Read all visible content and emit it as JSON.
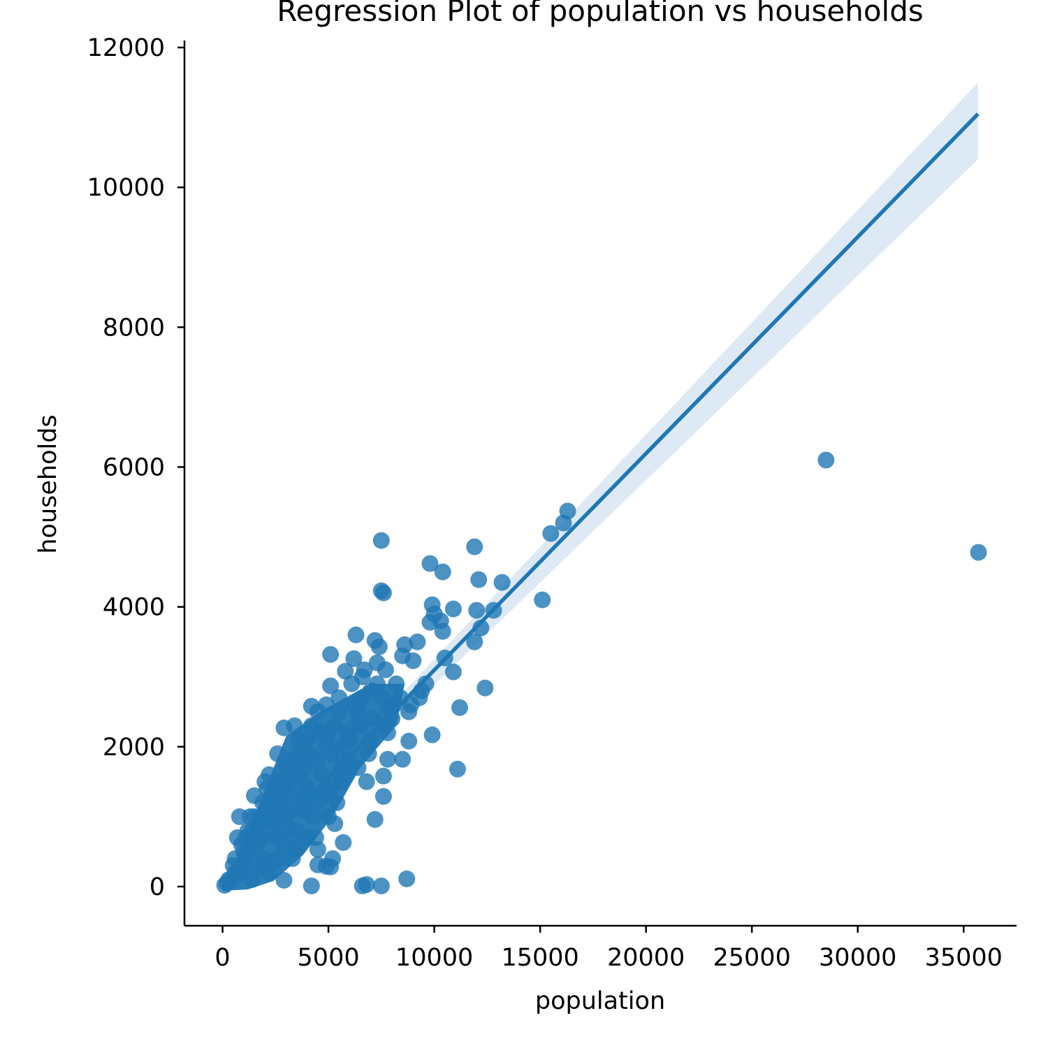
{
  "chart_data": {
    "type": "scatter",
    "title": "Regression Plot of population vs households",
    "xlabel": "population",
    "ylabel": "households",
    "xlim": [
      -1800,
      37500
    ],
    "ylim": [
      -560,
      12100
    ],
    "xticks": [
      0,
      5000,
      10000,
      15000,
      20000,
      25000,
      30000,
      35000
    ],
    "xtick_labels": [
      "0",
      "5000",
      "10000",
      "15000",
      "20000",
      "25000",
      "30000",
      "35000"
    ],
    "yticks": [
      0,
      2000,
      4000,
      6000,
      8000,
      10000,
      12000
    ],
    "ytick_labels": [
      "0",
      "2000",
      "4000",
      "6000",
      "8000",
      "10000",
      "12000"
    ],
    "grid": false,
    "colors": {
      "points": "#1f77b4",
      "line": "#1f77b4",
      "ci_band": "#c6dbef"
    },
    "regression": {
      "x": [
        0,
        35680
      ],
      "y": [
        0,
        11050
      ],
      "ci_lower_end": 10400,
      "ci_upper_end": 11500
    },
    "series": [
      {
        "points": [
          [
            7500,
            4950
          ],
          [
            7500,
            4230
          ],
          [
            7600,
            4200
          ],
          [
            9800,
            4620
          ],
          [
            10400,
            4500
          ],
          [
            11900,
            4860
          ],
          [
            12100,
            4390
          ],
          [
            13200,
            4350
          ],
          [
            9900,
            4030
          ],
          [
            9800,
            3780
          ],
          [
            10000,
            3900
          ],
          [
            10300,
            3800
          ],
          [
            10400,
            3650
          ],
          [
            10900,
            3970
          ],
          [
            12000,
            3950
          ],
          [
            12800,
            3950
          ],
          [
            12200,
            3700
          ],
          [
            11900,
            3500
          ],
          [
            15100,
            4100
          ],
          [
            15500,
            5050
          ],
          [
            16100,
            5200
          ],
          [
            16300,
            5370
          ],
          [
            28500,
            6100
          ],
          [
            35700,
            4780
          ],
          [
            6300,
            3600
          ],
          [
            7200,
            3520
          ],
          [
            7400,
            3430
          ],
          [
            8600,
            3460
          ],
          [
            9200,
            3500
          ],
          [
            5100,
            3320
          ],
          [
            6200,
            3260
          ],
          [
            7300,
            3200
          ],
          [
            8500,
            3300
          ],
          [
            9000,
            3230
          ],
          [
            10500,
            3270
          ],
          [
            10900,
            3070
          ],
          [
            12400,
            2840
          ],
          [
            11200,
            2560
          ],
          [
            11100,
            1680
          ],
          [
            9900,
            2170
          ],
          [
            8800,
            2080
          ],
          [
            8500,
            1820
          ],
          [
            7800,
            1820
          ],
          [
            7600,
            1580
          ],
          [
            7600,
            1290
          ],
          [
            7200,
            960
          ],
          [
            8700,
            110
          ],
          [
            7500,
            10
          ],
          [
            6600,
            10
          ],
          [
            6800,
            30
          ],
          [
            4200,
            10
          ],
          [
            5700,
            630
          ],
          [
            5200,
            400
          ],
          [
            4500,
            310
          ],
          [
            4900,
            290
          ],
          [
            5100,
            280
          ],
          [
            4500,
            530
          ],
          [
            3500,
            560
          ],
          [
            2900,
            90
          ],
          [
            5100,
            2870
          ],
          [
            4200,
            2580
          ],
          [
            4500,
            2500
          ],
          [
            5800,
            3080
          ],
          [
            3400,
            2300
          ],
          [
            2900,
            2270
          ],
          [
            6600,
            3000
          ],
          [
            7800,
            2550
          ],
          [
            8800,
            2500
          ],
          [
            9400,
            2800
          ],
          [
            9600,
            2900
          ],
          [
            6400,
            2500
          ],
          [
            5900,
            2200
          ],
          [
            4900,
            2000
          ],
          [
            3600,
            1900
          ],
          [
            2200,
            1600
          ],
          [
            2000,
            1500
          ],
          [
            2500,
            1300
          ],
          [
            3000,
            1700
          ],
          [
            1500,
            1000
          ],
          [
            800,
            1000
          ],
          [
            1200,
            800
          ],
          [
            1800,
            700
          ],
          [
            2600,
            400
          ],
          [
            3200,
            800
          ],
          [
            1000,
            300
          ],
          [
            600,
            200
          ],
          [
            300,
            100
          ],
          [
            100,
            20
          ],
          [
            1400,
            100
          ],
          [
            2200,
            200
          ],
          [
            3000,
            1000
          ],
          [
            4000,
            1400
          ],
          [
            4500,
            1800
          ],
          [
            5000,
            1000
          ],
          [
            5600,
            1500
          ],
          [
            6000,
            1800
          ],
          [
            6500,
            2300
          ],
          [
            7000,
            2100
          ],
          [
            7500,
            2700
          ],
          [
            8000,
            2400
          ],
          [
            8200,
            2900
          ],
          [
            5500,
            2500
          ],
          [
            4000,
            2100
          ],
          [
            3800,
            1300
          ],
          [
            2800,
            1100
          ],
          [
            1700,
            900
          ],
          [
            2400,
            900
          ],
          [
            3300,
            1500
          ],
          [
            1200,
            500
          ],
          [
            500,
            300
          ],
          [
            700,
            700
          ],
          [
            900,
            600
          ],
          [
            1500,
            1300
          ],
          [
            2600,
            1900
          ],
          [
            3500,
            800
          ],
          [
            4300,
            1000
          ],
          [
            5200,
            1900
          ],
          [
            6200,
            2600
          ],
          [
            6800,
            1500
          ],
          [
            7100,
            2400
          ],
          [
            7800,
            2200
          ],
          [
            8400,
            2700
          ],
          [
            5400,
            1200
          ],
          [
            4700,
            1600
          ],
          [
            3900,
            1700
          ],
          [
            3100,
            1300
          ],
          [
            2300,
            1100
          ],
          [
            1900,
            1200
          ],
          [
            1100,
            700
          ],
          [
            400,
            100
          ],
          [
            200,
            50
          ],
          [
            600,
            400
          ],
          [
            1300,
            1000
          ],
          [
            2100,
            1400
          ],
          [
            2700,
            1500
          ],
          [
            3700,
            1600
          ],
          [
            4100,
            1900
          ],
          [
            5300,
            2300
          ],
          [
            6000,
            2100
          ],
          [
            6600,
            2700
          ],
          [
            7300,
            2900
          ],
          [
            5600,
            1700
          ],
          [
            4800,
            1300
          ],
          [
            4400,
            700
          ],
          [
            3400,
            1100
          ],
          [
            2900,
            600
          ],
          [
            2000,
            400
          ],
          [
            1600,
            600
          ],
          [
            900,
            200
          ],
          [
            1800,
            1000
          ],
          [
            2500,
            700
          ],
          [
            3200,
            1800
          ],
          [
            4600,
            2200
          ],
          [
            5800,
            1600
          ],
          [
            6900,
            1900
          ],
          [
            7600,
            2300
          ],
          [
            8100,
            2600
          ],
          [
            8900,
            2600
          ],
          [
            9300,
            2700
          ],
          [
            3600,
            2100
          ],
          [
            4200,
            2300
          ],
          [
            4900,
            2600
          ],
          [
            5500,
            2700
          ],
          [
            6100,
            2900
          ],
          [
            6700,
            3100
          ],
          [
            7000,
            2800
          ],
          [
            7700,
            3100
          ],
          [
            5000,
            2200
          ],
          [
            3000,
            1500
          ],
          [
            2400,
            1200
          ],
          [
            1400,
            800
          ],
          [
            1000,
            500
          ],
          [
            700,
            200
          ],
          [
            1700,
            300
          ],
          [
            3800,
            1100
          ],
          [
            4400,
            1200
          ],
          [
            5100,
            1400
          ],
          [
            5700,
            2000
          ],
          [
            6300,
            2300
          ],
          [
            6400,
            1700
          ],
          [
            5300,
            900
          ],
          [
            4000,
            700
          ],
          [
            3300,
            400
          ],
          [
            2200,
            1000
          ]
        ]
      }
    ]
  }
}
